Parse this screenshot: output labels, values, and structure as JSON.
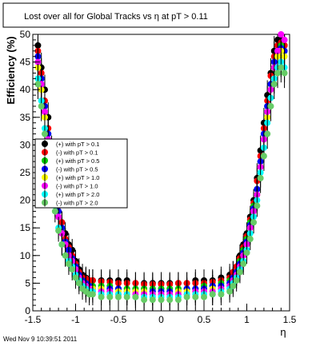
{
  "chart_data": {
    "type": "scatter",
    "title": "Lost over all for Global Tracks vs    η at pT > 0.11",
    "xlabel": "η",
    "ylabel": "Efficiency (%)",
    "xlim": [
      -1.5,
      1.5
    ],
    "ylim": [
      0,
      50
    ],
    "x_ticks": [
      "-1.5",
      "-1",
      "-0.5",
      "0",
      "0.5",
      "1",
      "1.5"
    ],
    "y_ticks": [
      "0",
      "5",
      "10",
      "15",
      "20",
      "25",
      "30",
      "35",
      "40",
      "45",
      "50"
    ],
    "grid": false,
    "legend_placement": "center-left",
    "footer": "Wed Nov  9 10:39:51 2011",
    "x": [
      -1.44,
      -1.4,
      -1.36,
      -1.32,
      -1.28,
      -1.24,
      -1.2,
      -1.16,
      -1.12,
      -1.08,
      -1.04,
      -1.0,
      -0.96,
      -0.92,
      -0.88,
      -0.84,
      -0.8,
      -0.7,
      -0.6,
      -0.5,
      -0.4,
      -0.3,
      -0.2,
      -0.1,
      0.0,
      0.1,
      0.2,
      0.3,
      0.4,
      0.5,
      0.6,
      0.7,
      0.8,
      0.84,
      0.88,
      0.92,
      0.96,
      1.0,
      1.04,
      1.08,
      1.12,
      1.16,
      1.2,
      1.24,
      1.28,
      1.32,
      1.36,
      1.4,
      1.44
    ],
    "series": [
      {
        "name": "(+) with pT > 0.1",
        "color": "#000000",
        "values": [
          48,
          44,
          40,
          35,
          29,
          24,
          19,
          16,
          14,
          12,
          11,
          9,
          7.5,
          6.5,
          6,
          5.5,
          5.5,
          5.5,
          5.5,
          5.5,
          5.5,
          5,
          5,
          5,
          5,
          5,
          5,
          5,
          5.5,
          5.5,
          5.5,
          6,
          6.5,
          7,
          8,
          10,
          12,
          14,
          17,
          20,
          24,
          29,
          34,
          39,
          43,
          47,
          49,
          49,
          48
        ]
      },
      {
        "name": "(-) with pT > 0.1",
        "color": "#ff0000",
        "values": [
          47,
          43,
          38,
          33,
          28,
          23,
          19,
          16,
          13,
          11.5,
          10,
          8.5,
          7,
          6,
          5.8,
          5.5,
          5.5,
          5.3,
          5.2,
          5,
          5,
          5,
          4.8,
          4.8,
          4.8,
          4.8,
          5,
          5,
          5,
          5,
          5.2,
          5.5,
          6,
          7,
          8,
          9.5,
          11.5,
          13.5,
          16.5,
          19.5,
          23.5,
          28,
          33,
          38,
          42.5,
          46,
          48,
          48.5,
          48
        ]
      },
      {
        "name": "(+) with pT > 0.5",
        "color": "#00cc00",
        "values": [
          46,
          42,
          37,
          32,
          27,
          22,
          18,
          15,
          12.5,
          11,
          9.5,
          8,
          6.5,
          5.5,
          5,
          4.5,
          4.5,
          4.5,
          4.5,
          4,
          4,
          4,
          4,
          4,
          4,
          4,
          4,
          4,
          4,
          4.5,
          4.5,
          5,
          5.5,
          6,
          7,
          9,
          11,
          13,
          16,
          19,
          22,
          27,
          32,
          37,
          41,
          45,
          47,
          48,
          47
        ]
      },
      {
        "name": "(-) with pT > 0.5",
        "color": "#0000ff",
        "values": [
          46,
          42,
          37,
          32,
          27,
          22,
          18,
          15,
          12.5,
          11,
          9.5,
          8,
          6.5,
          5.5,
          5,
          4.5,
          4,
          4,
          4,
          4,
          3.5,
          3.5,
          3.5,
          3.5,
          3.5,
          3.5,
          3.5,
          4,
          4,
          4,
          4.5,
          4.5,
          5,
          6,
          7,
          8.5,
          10.5,
          12.5,
          15.5,
          18.5,
          22,
          27,
          32,
          37,
          41,
          45,
          47,
          47.5,
          47
        ]
      },
      {
        "name": "(+) with pT > 1.0",
        "color": "#ffff00",
        "values": [
          44,
          40,
          35,
          30,
          25,
          21,
          17,
          14,
          12,
          10,
          9,
          7.5,
          6,
          5,
          4.5,
          4,
          4,
          4,
          3.5,
          3.5,
          3.5,
          3.5,
          3.5,
          3,
          3,
          3,
          3.5,
          3.5,
          3.5,
          3.5,
          4,
          4,
          4.5,
          5.5,
          6.5,
          8,
          10,
          12,
          15,
          18,
          21,
          26,
          31,
          35,
          40,
          44,
          46,
          47,
          46
        ]
      },
      {
        "name": "(-) with pT > 1.0",
        "color": "#ff00ff",
        "values": [
          45,
          41,
          36,
          31,
          26,
          21,
          17,
          14,
          12,
          10,
          9,
          7.5,
          6,
          5,
          4.5,
          4,
          3.5,
          3.5,
          3.5,
          3,
          3,
          3,
          3,
          3,
          3,
          3,
          3,
          3,
          3.5,
          3.5,
          3.5,
          4,
          4.5,
          5.5,
          6.5,
          8,
          10,
          12,
          15,
          18,
          21,
          26,
          31,
          36,
          40,
          44,
          47,
          50,
          49
        ]
      },
      {
        "name": "(+) with pT > 2.0",
        "color": "#00ffff",
        "values": [
          42,
          38,
          33,
          28,
          23,
          19,
          15,
          12,
          10,
          9,
          8,
          6.5,
          5.5,
          4.5,
          4,
          3.5,
          3.5,
          3,
          3,
          3,
          3,
          2.5,
          2.5,
          2.5,
          2.5,
          2.5,
          2.5,
          3,
          3,
          3,
          3,
          3.5,
          4,
          5,
          6,
          7.5,
          9,
          11,
          14,
          17,
          20,
          25,
          29.5,
          34,
          38.5,
          42,
          44,
          45,
          44
        ]
      },
      {
        "name": "(-) with pT > 2.0",
        "color": "#66cc66",
        "values": [
          41,
          37,
          32,
          27,
          22,
          18,
          14.5,
          12,
          10,
          8.5,
          7.5,
          6,
          5,
          4,
          3.5,
          3,
          3,
          2.5,
          2.5,
          2.5,
          2.5,
          2.5,
          2,
          2,
          2,
          2,
          2,
          2.5,
          2.5,
          2.5,
          3,
          3,
          3.5,
          4.5,
          5.5,
          7,
          8.5,
          10.5,
          13,
          16,
          19,
          24,
          28,
          32,
          37,
          41,
          43,
          44,
          43
        ]
      }
    ]
  }
}
